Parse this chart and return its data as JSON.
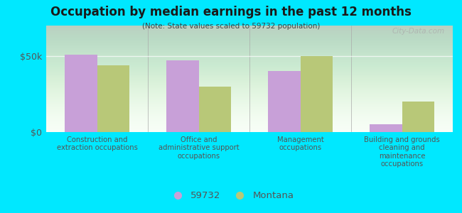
{
  "title": "Occupation by median earnings in the past 12 months",
  "subtitle": "(Note: State values scaled to 59732 population)",
  "categories": [
    "Construction and\nextraction occupations",
    "Office and\nadministrative support\noccupations",
    "Management\noccupations",
    "Building and grounds\ncleaning and\nmaintenance\noccupations"
  ],
  "values_59732": [
    51000,
    47000,
    40000,
    5000
  ],
  "values_montana": [
    44000,
    30000,
    50000,
    20000
  ],
  "color_59732": "#c8a0d8",
  "color_montana": "#b8c878",
  "background_outer": "#00e8ff",
  "background_chart_top": "#d0e8d0",
  "background_chart_bottom": "#f8fff8",
  "ylim": [
    0,
    70000
  ],
  "yticks": [
    0,
    50000
  ],
  "ytick_labels": [
    "$0",
    "$50k"
  ],
  "legend_label_59732": "59732",
  "legend_label_montana": "Montana",
  "watermark": "City-Data.com",
  "bar_width": 0.32,
  "title_color": "#1a1a1a",
  "subtitle_color": "#444444",
  "tick_label_color": "#555555"
}
